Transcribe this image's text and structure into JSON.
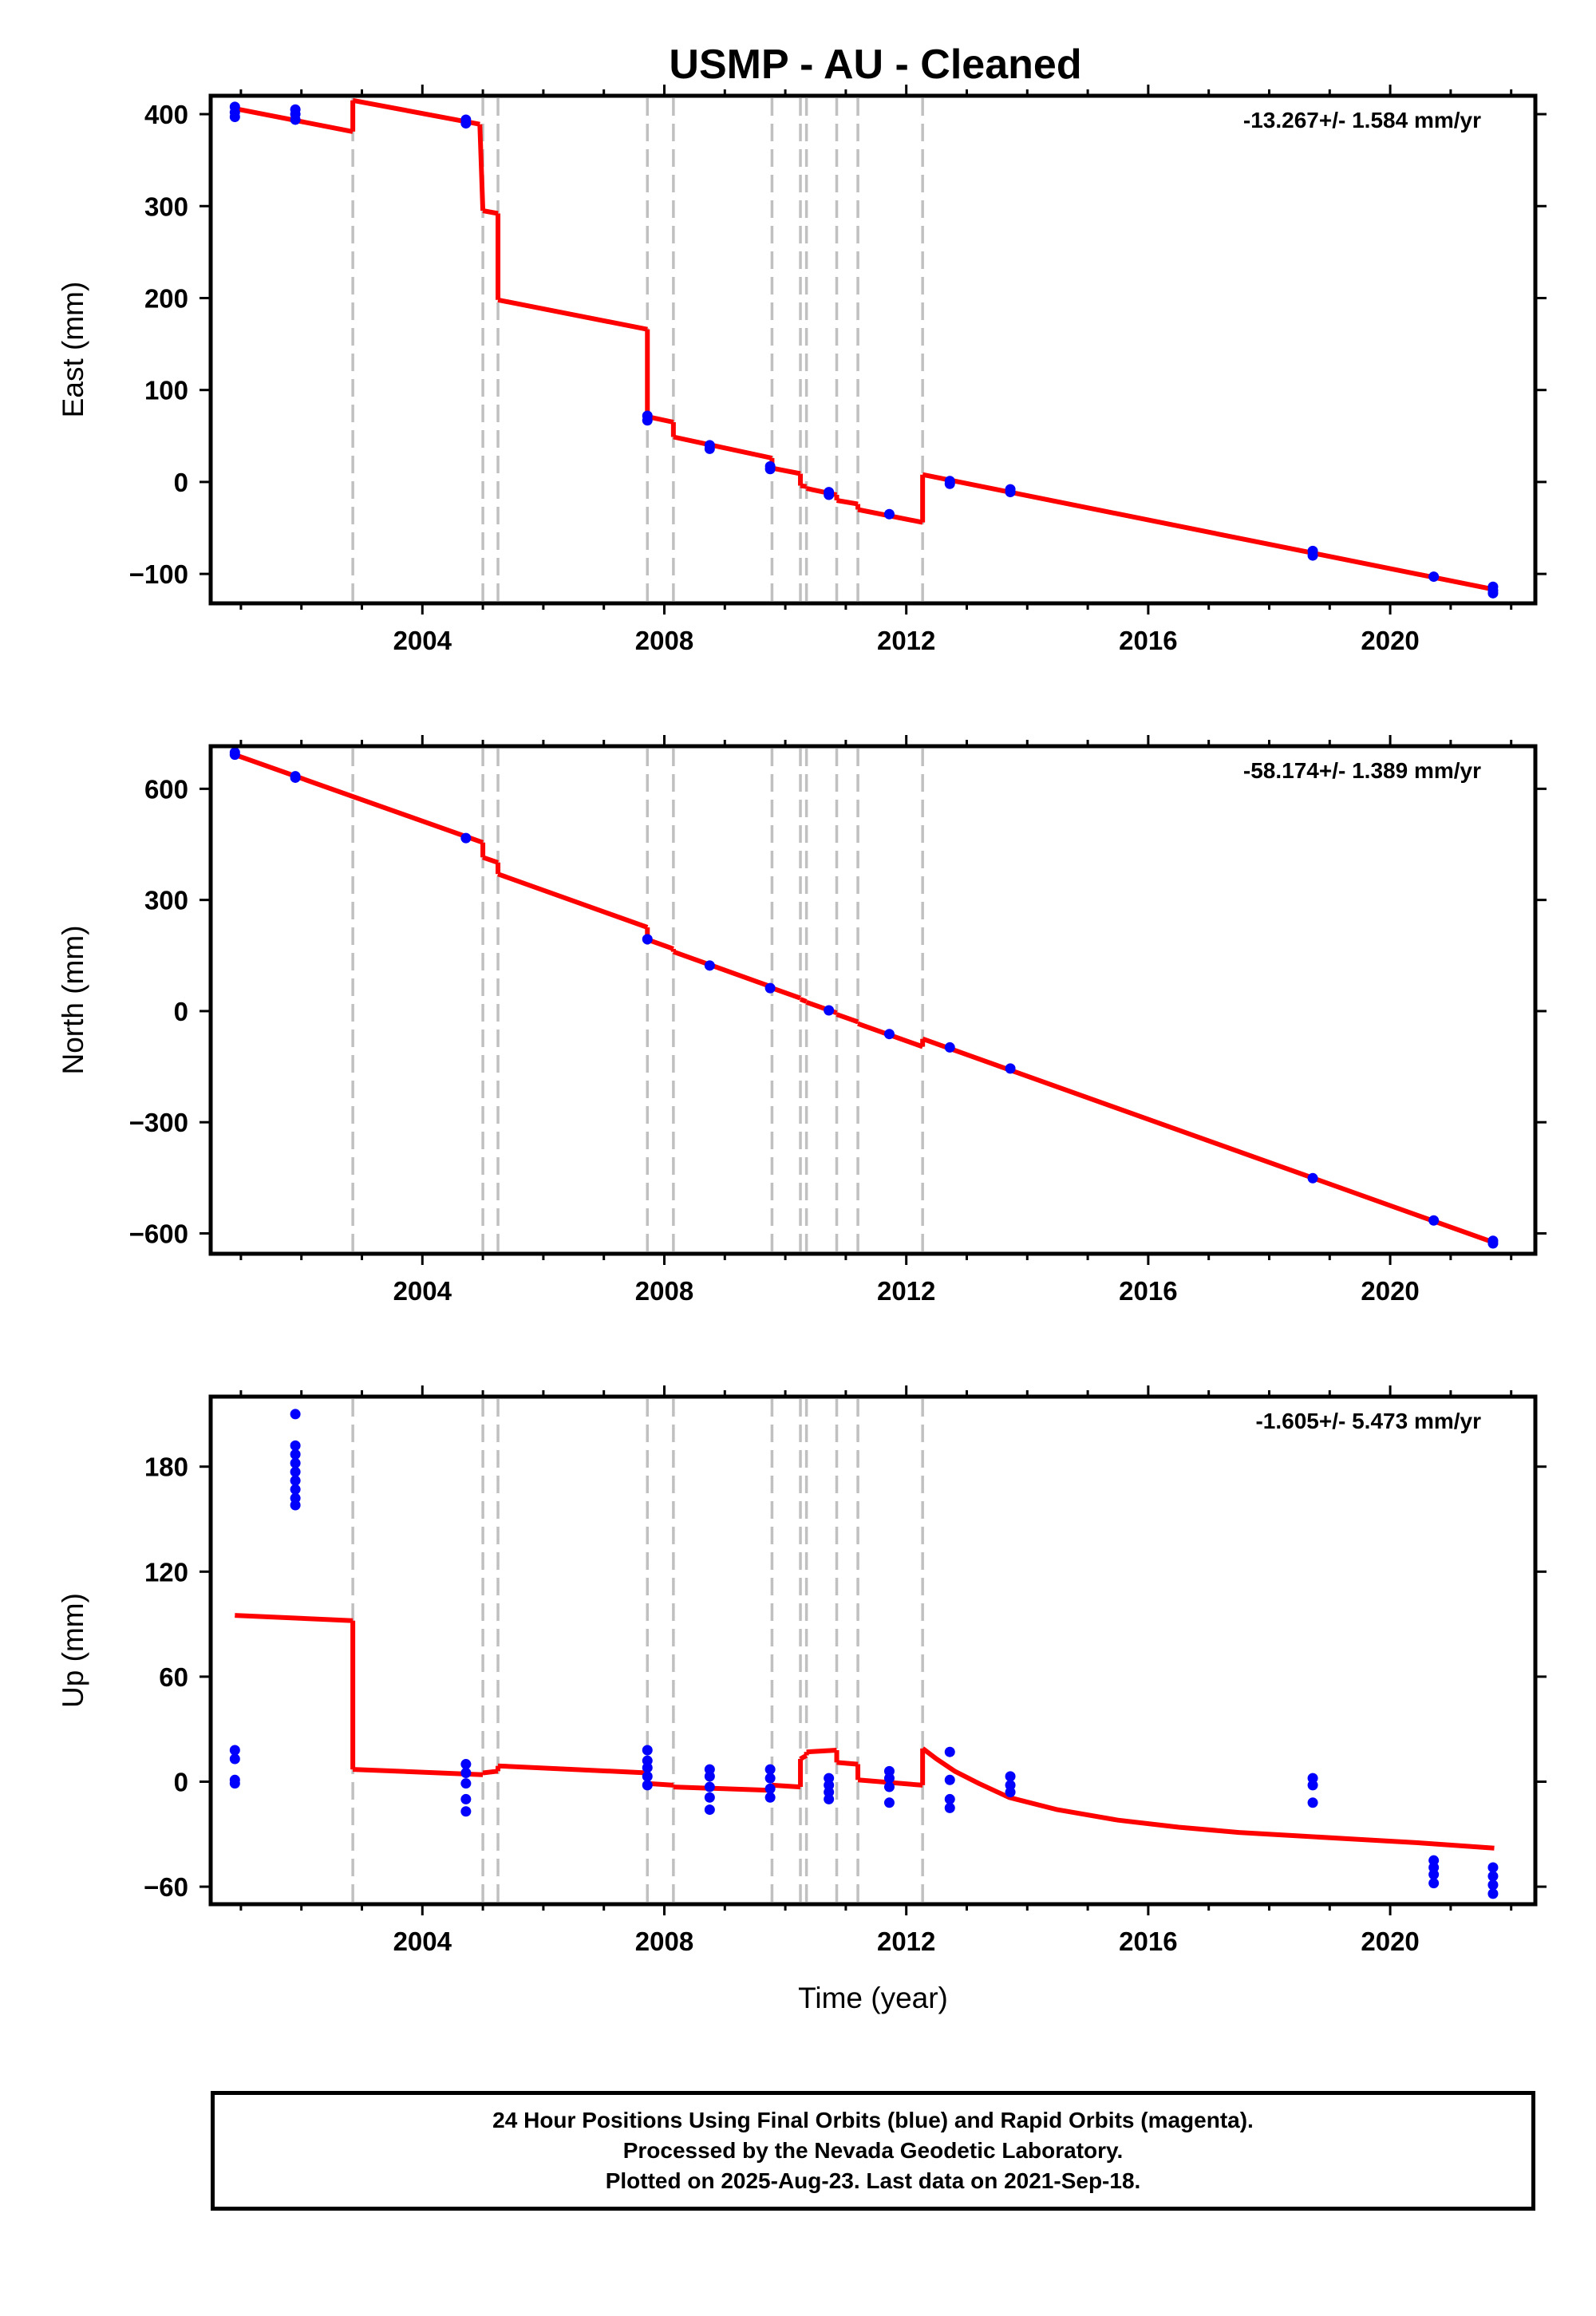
{
  "title": "USMP  - AU - Cleaned",
  "footer": {
    "line1": "24 Hour Positions Using Final Orbits (blue) and Rapid Orbits (magenta).",
    "line2": "Processed by the Nevada Geodetic Laboratory.",
    "line3": "Plotted on 2025-Aug-23. Last data on 2021-Sep-18."
  },
  "colors": {
    "model": "#ff0000",
    "final_orbits": "#0000ff",
    "breaks": "#c0c0c0",
    "axes": "#000000"
  },
  "chart_data": [
    {
      "type": "scatter",
      "ylabel": "East (mm)",
      "xlabel": "",
      "rate_text": "-13.267+/- 1.584 mm/yr",
      "xlim": [
        2000.5,
        2022.4
      ],
      "ylim": [
        -132,
        420
      ],
      "xticks": [
        2004,
        2008,
        2012,
        2016,
        2020
      ],
      "yticks": [
        -100,
        0,
        100,
        200,
        300,
        400
      ],
      "ytick_labels": [
        "−100",
        "0",
        "100",
        "200",
        "300",
        "400"
      ],
      "break_lines": [
        2002.85,
        2005.0,
        2005.25,
        2007.72,
        2008.15,
        2009.78,
        2010.25,
        2010.35,
        2010.85,
        2011.2,
        2012.27
      ],
      "model_segments": [
        [
          [
            2000.9,
            406
          ],
          [
            2002.85,
            381
          ]
        ],
        [
          [
            2002.85,
            415
          ],
          [
            2004.95,
            389
          ]
        ],
        [
          [
            2005.0,
            295
          ],
          [
            2005.25,
            292
          ]
        ],
        [
          [
            2005.25,
            198
          ],
          [
            2007.72,
            166
          ]
        ],
        [
          [
            2007.72,
            71
          ],
          [
            2008.15,
            65
          ]
        ],
        [
          [
            2008.15,
            49
          ],
          [
            2009.78,
            26
          ]
        ],
        [
          [
            2009.78,
            15
          ],
          [
            2010.25,
            9
          ]
        ],
        [
          [
            2010.25,
            -4
          ],
          [
            2010.35,
            -5
          ]
        ],
        [
          [
            2010.35,
            -7
          ],
          [
            2010.85,
            -14
          ]
        ],
        [
          [
            2010.85,
            -20
          ],
          [
            2011.2,
            -24
          ]
        ],
        [
          [
            2011.2,
            -30
          ],
          [
            2012.27,
            -44
          ]
        ],
        [
          [
            2012.27,
            8
          ],
          [
            2021.72,
            -117
          ]
        ]
      ],
      "points": [
        [
          2000.9,
          408
        ],
        [
          2000.9,
          402
        ],
        [
          2000.9,
          397
        ],
        [
          2001.9,
          405
        ],
        [
          2001.9,
          400
        ],
        [
          2001.9,
          394
        ],
        [
          2004.72,
          394
        ],
        [
          2004.72,
          390
        ],
        [
          2007.72,
          72
        ],
        [
          2007.72,
          67
        ],
        [
          2008.75,
          40
        ],
        [
          2008.75,
          36
        ],
        [
          2009.75,
          17
        ],
        [
          2009.75,
          14
        ],
        [
          2010.72,
          -11
        ],
        [
          2010.72,
          -14
        ],
        [
          2011.72,
          -35
        ],
        [
          2012.72,
          1
        ],
        [
          2012.72,
          -2
        ],
        [
          2013.72,
          -8
        ],
        [
          2013.72,
          -11
        ],
        [
          2018.72,
          -75
        ],
        [
          2018.72,
          -80
        ],
        [
          2020.72,
          -103
        ],
        [
          2021.7,
          -114
        ],
        [
          2021.7,
          -118
        ],
        [
          2021.7,
          -121
        ]
      ]
    },
    {
      "type": "scatter",
      "ylabel": "North (mm)",
      "xlabel": "",
      "rate_text": "-58.174+/- 1.389 mm/yr",
      "xlim": [
        2000.5,
        2022.4
      ],
      "ylim": [
        -655,
        715
      ],
      "xticks": [
        2004,
        2008,
        2012,
        2016,
        2020
      ],
      "yticks": [
        -600,
        -300,
        0,
        300,
        600
      ],
      "ytick_labels": [
        "−600",
        "−300",
        "0",
        "300",
        "600"
      ],
      "break_lines": [
        2002.85,
        2005.0,
        2005.25,
        2007.72,
        2008.15,
        2009.78,
        2010.25,
        2010.35,
        2010.85,
        2011.2,
        2012.27
      ],
      "model_segments": [
        [
          [
            2000.9,
            692
          ],
          [
            2005.0,
            455
          ]
        ],
        [
          [
            2005.0,
            415
          ],
          [
            2005.25,
            401
          ]
        ],
        [
          [
            2005.25,
            370
          ],
          [
            2007.72,
            226
          ]
        ],
        [
          [
            2007.72,
            193
          ],
          [
            2008.15,
            168
          ]
        ],
        [
          [
            2008.15,
            160
          ],
          [
            2009.78,
            65
          ]
        ],
        [
          [
            2009.78,
            62
          ],
          [
            2010.25,
            35
          ]
        ],
        [
          [
            2010.25,
            32
          ],
          [
            2010.35,
            26
          ]
        ],
        [
          [
            2010.35,
            24
          ],
          [
            2010.85,
            -5
          ]
        ],
        [
          [
            2010.85,
            -9
          ],
          [
            2011.2,
            -29
          ]
        ],
        [
          [
            2011.2,
            -34
          ],
          [
            2012.27,
            -96
          ]
        ],
        [
          [
            2012.27,
            -75
          ],
          [
            2021.72,
            -625
          ]
        ]
      ],
      "points": [
        [
          2000.9,
          698
        ],
        [
          2000.9,
          692
        ],
        [
          2001.9,
          634
        ],
        [
          2001.9,
          630
        ],
        [
          2004.72,
          467
        ],
        [
          2007.72,
          194
        ],
        [
          2008.75,
          123
        ],
        [
          2009.75,
          62
        ],
        [
          2010.72,
          2
        ],
        [
          2011.72,
          -62
        ],
        [
          2012.72,
          -98
        ],
        [
          2013.72,
          -155
        ],
        [
          2018.72,
          -451
        ],
        [
          2020.72,
          -565
        ],
        [
          2021.7,
          -620
        ],
        [
          2021.7,
          -627
        ]
      ]
    },
    {
      "type": "scatter",
      "ylabel": "Up (mm)",
      "xlabel": "Time (year)",
      "rate_text": "-1.605+/- 5.473 mm/yr",
      "xlim": [
        2000.5,
        2022.4
      ],
      "ylim": [
        -70,
        220
      ],
      "xticks": [
        2004,
        2008,
        2012,
        2016,
        2020
      ],
      "yticks": [
        -60,
        0,
        60,
        120,
        180
      ],
      "ytick_labels": [
        "−60",
        "0",
        "60",
        "120",
        "180"
      ],
      "break_lines": [
        2002.85,
        2005.0,
        2005.25,
        2007.72,
        2008.15,
        2009.78,
        2010.25,
        2010.35,
        2010.85,
        2011.2,
        2012.27
      ],
      "model_segments": [
        [
          [
            2000.9,
            95
          ],
          [
            2002.85,
            92
          ]
        ],
        [
          [
            2002.85,
            7
          ],
          [
            2005.0,
            4
          ]
        ],
        [
          [
            2005.0,
            5
          ],
          [
            2005.25,
            6
          ]
        ],
        [
          [
            2005.25,
            9
          ],
          [
            2007.72,
            5
          ]
        ],
        [
          [
            2007.72,
            -1
          ],
          [
            2008.15,
            -2
          ]
        ],
        [
          [
            2008.15,
            -3
          ],
          [
            2009.78,
            -5
          ]
        ],
        [
          [
            2009.78,
            -2
          ],
          [
            2010.25,
            -3
          ]
        ],
        [
          [
            2010.25,
            13
          ],
          [
            2010.35,
            15
          ]
        ],
        [
          [
            2010.35,
            17
          ],
          [
            2010.85,
            18
          ]
        ],
        [
          [
            2010.85,
            11
          ],
          [
            2011.2,
            10
          ]
        ],
        [
          [
            2011.2,
            1
          ],
          [
            2012.27,
            -2
          ]
        ],
        [
          [
            2012.27,
            19
          ],
          [
            2012.5,
            13
          ],
          [
            2012.8,
            6
          ],
          [
            2013.2,
            -1
          ],
          [
            2013.7,
            -9
          ],
          [
            2014.5,
            -16
          ],
          [
            2015.5,
            -22
          ],
          [
            2016.5,
            -26
          ],
          [
            2017.5,
            -29
          ],
          [
            2018.5,
            -31
          ],
          [
            2019.5,
            -33
          ],
          [
            2020.5,
            -35
          ],
          [
            2021.72,
            -38
          ]
        ]
      ],
      "points": [
        [
          2000.9,
          18
        ],
        [
          2000.9,
          13
        ],
        [
          2000.9,
          1
        ],
        [
          2000.9,
          -1
        ],
        [
          2001.9,
          210
        ],
        [
          2001.9,
          192
        ],
        [
          2001.9,
          187
        ],
        [
          2001.9,
          182
        ],
        [
          2001.9,
          177
        ],
        [
          2001.9,
          172
        ],
        [
          2001.9,
          167
        ],
        [
          2001.9,
          162
        ],
        [
          2001.9,
          158
        ],
        [
          2004.72,
          10
        ],
        [
          2004.72,
          5
        ],
        [
          2004.72,
          -1
        ],
        [
          2004.72,
          -10
        ],
        [
          2004.72,
          -17
        ],
        [
          2007.72,
          18
        ],
        [
          2007.72,
          12
        ],
        [
          2007.72,
          8
        ],
        [
          2007.72,
          3
        ],
        [
          2007.72,
          -2
        ],
        [
          2008.75,
          7
        ],
        [
          2008.75,
          3
        ],
        [
          2008.75,
          -3
        ],
        [
          2008.75,
          -9
        ],
        [
          2008.75,
          -16
        ],
        [
          2009.75,
          7
        ],
        [
          2009.75,
          2
        ],
        [
          2009.75,
          -4
        ],
        [
          2009.75,
          -9
        ],
        [
          2010.72,
          2
        ],
        [
          2010.72,
          -2
        ],
        [
          2010.72,
          -6
        ],
        [
          2010.72,
          -10
        ],
        [
          2011.72,
          6
        ],
        [
          2011.72,
          2
        ],
        [
          2011.72,
          -3
        ],
        [
          2011.72,
          -12
        ],
        [
          2012.72,
          17
        ],
        [
          2012.72,
          1
        ],
        [
          2012.72,
          -10
        ],
        [
          2012.72,
          -15
        ],
        [
          2013.72,
          3
        ],
        [
          2013.72,
          -2
        ],
        [
          2013.72,
          -6
        ],
        [
          2018.72,
          2
        ],
        [
          2018.72,
          -2
        ],
        [
          2018.72,
          -12
        ],
        [
          2020.72,
          -45
        ],
        [
          2020.72,
          -49
        ],
        [
          2020.72,
          -53
        ],
        [
          2020.72,
          -58
        ],
        [
          2021.7,
          -49
        ],
        [
          2021.7,
          -54
        ],
        [
          2021.7,
          -59
        ],
        [
          2021.7,
          -64
        ]
      ]
    }
  ]
}
